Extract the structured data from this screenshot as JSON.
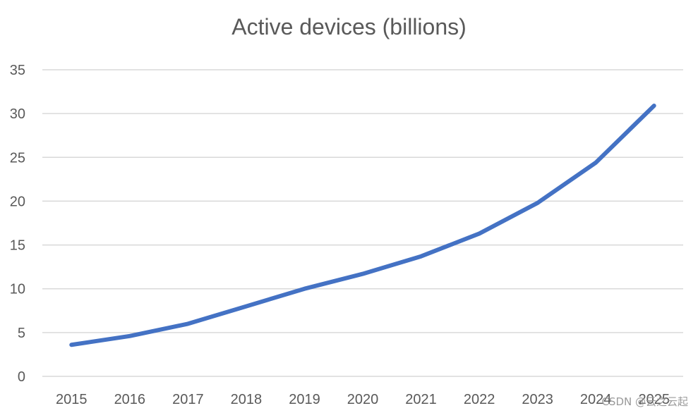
{
  "chart_data": {
    "type": "line",
    "title": "Active devices (billions)",
    "xlabel": "",
    "ylabel": "",
    "categories": [
      "2015",
      "2016",
      "2017",
      "2018",
      "2019",
      "2020",
      "2021",
      "2022",
      "2023",
      "2024",
      "2025"
    ],
    "series": [
      {
        "values": [
          3.6,
          4.6,
          6.0,
          8.0,
          10.0,
          11.7,
          13.7,
          16.3,
          19.8,
          24.4,
          30.9
        ]
      }
    ],
    "ylim": [
      0,
      35
    ],
    "yticks": [
      0,
      5,
      10,
      15,
      20,
      25,
      30,
      35
    ],
    "grid": true,
    "legend": "none",
    "line_color": "#4472c4",
    "grid_color": "#d9d9d9"
  },
  "watermark": "CSDN @云之云起"
}
